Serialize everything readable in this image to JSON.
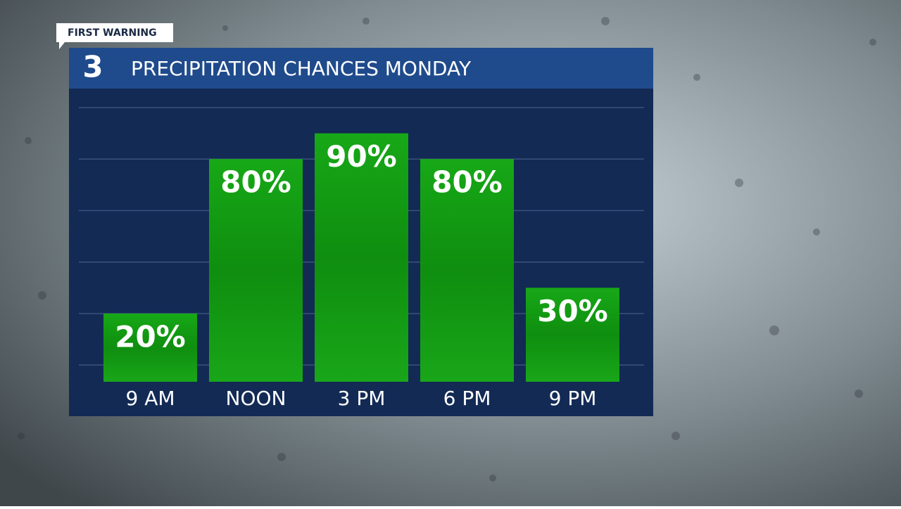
{
  "tag": "FIRST WARNING",
  "logo_text": "3",
  "chart_data": {
    "type": "bar",
    "title": "PRECIPITATION CHANCES MONDAY",
    "categories": [
      "9 AM",
      "NOON",
      "3 PM",
      "6 PM",
      "9 PM"
    ],
    "values": [
      20,
      80,
      90,
      80,
      30
    ],
    "value_labels": [
      "20%",
      "80%",
      "90%",
      "80%",
      "30%"
    ],
    "color": "#14a014",
    "ylim": [
      -6.5,
      100
    ],
    "yticks": [
      0,
      20,
      40,
      60,
      80,
      100
    ],
    "grid": true
  }
}
